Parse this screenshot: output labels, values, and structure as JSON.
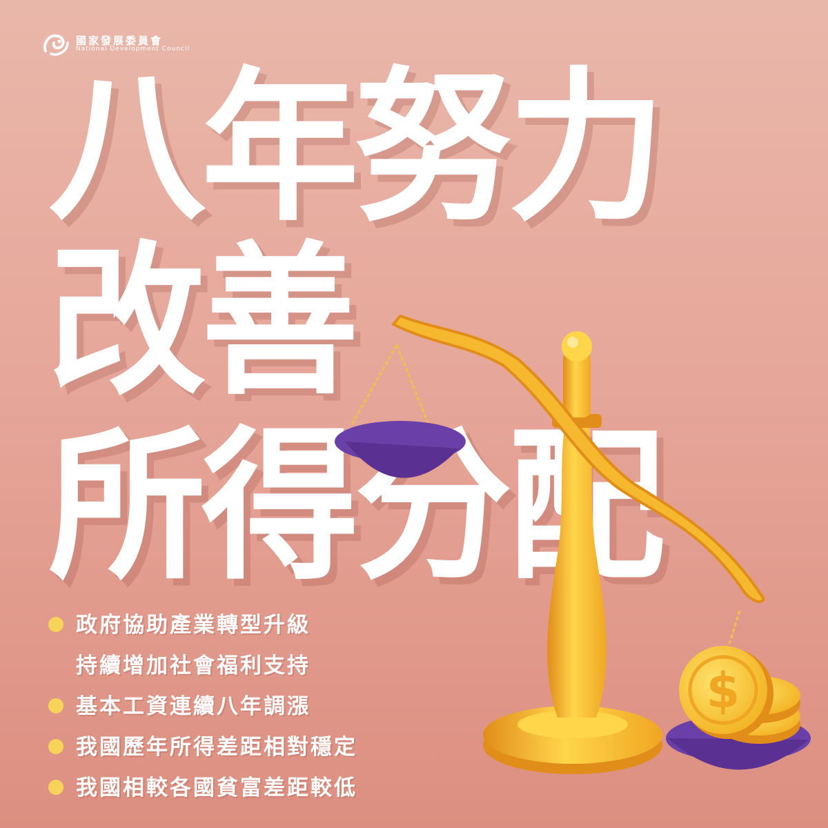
{
  "brand": {
    "name_zh": "國家發展委員會",
    "name_en": "National Development Council"
  },
  "headline": {
    "line1": "八年努力",
    "line2": "改善",
    "line3": "所得分配"
  },
  "bullets": [
    {
      "text": "政府協助產業轉型升級",
      "has_dot": true
    },
    {
      "text": "持續增加社會福利支持",
      "has_dot": false
    },
    {
      "text": "基本工資連續八年調漲",
      "has_dot": true
    },
    {
      "text": "我國歷年所得差距相對穩定",
      "has_dot": true
    },
    {
      "text": "我國相較各國貧富差距較低",
      "has_dot": true
    }
  ],
  "illustration": {
    "coin_symbol": "$",
    "colors": {
      "gold": "#f5b82e",
      "gold_light": "#ffd54a",
      "gold_dark": "#e08d1a",
      "purple": "#6a3fa8",
      "bullet_dot": "#f7d35a"
    }
  }
}
